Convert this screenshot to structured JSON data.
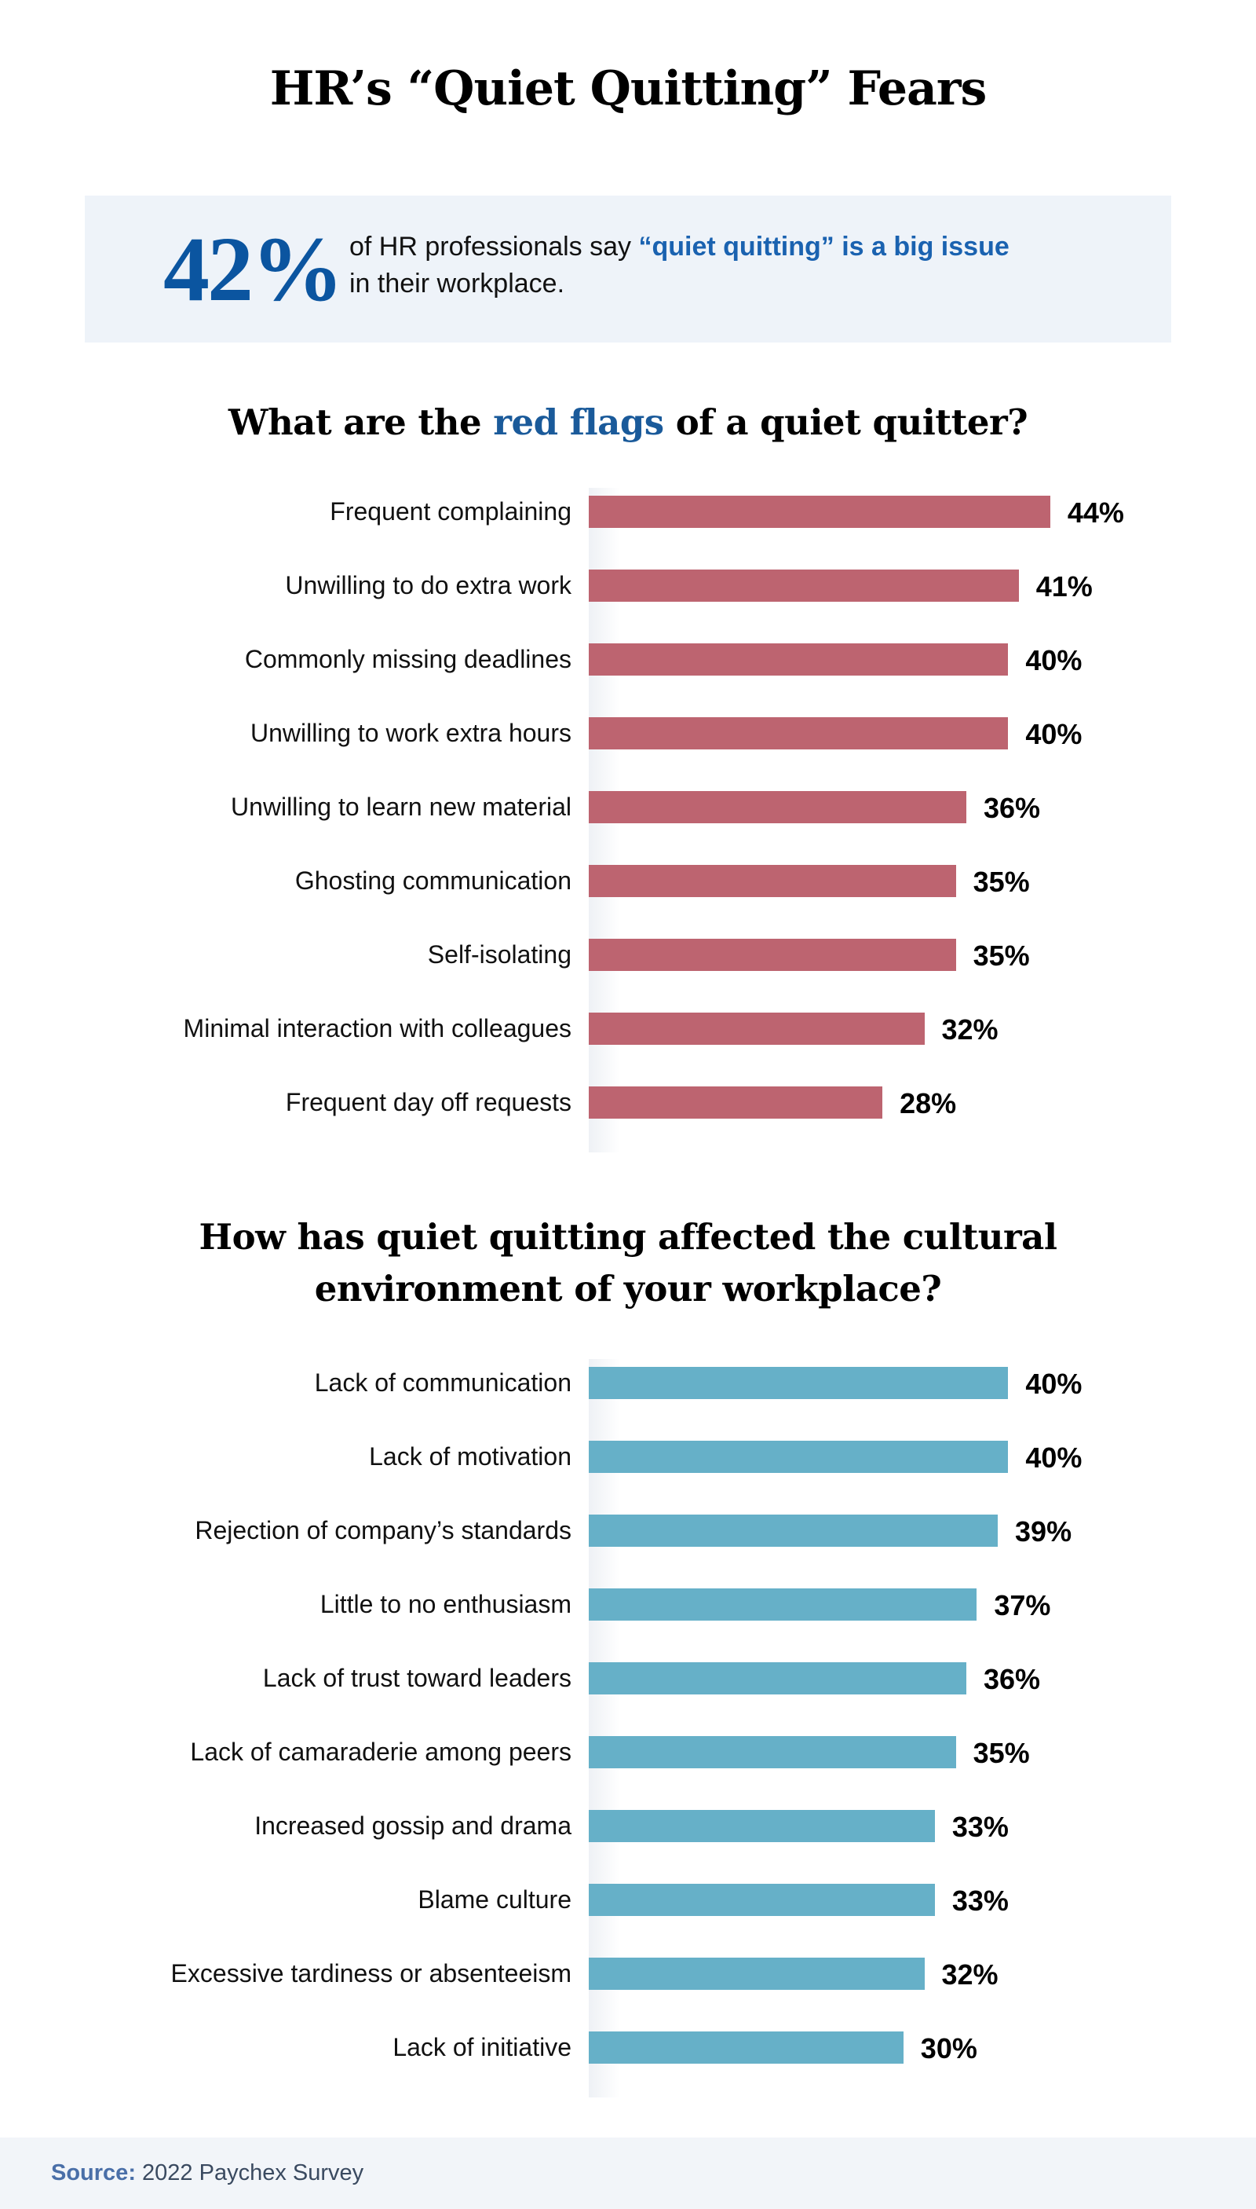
{
  "title": "HR’s “Quiet Quitting” Fears",
  "callout": {
    "value": "42%",
    "text_before": "of HR professionals say ",
    "highlight": "“quiet quitting” is a big issue",
    "text_after": "in their workplace."
  },
  "footer": {
    "source_label": "Source:",
    "source_text": "2022 Paychex Survey"
  },
  "chart_data": [
    {
      "type": "bar",
      "orientation": "horizontal",
      "title_parts": [
        "What are the ",
        "red flags",
        " of a quiet quitter?"
      ],
      "color": "#bd6470",
      "unit": "%",
      "categories": [
        "Frequent complaining",
        "Unwilling to do extra work",
        "Commonly missing deadlines",
        "Unwilling to work extra hours",
        "Unwilling to learn new material",
        "Ghosting communication",
        "Self-isolating",
        "Minimal interaction with colleagues",
        "Frequent day off requests"
      ],
      "values": [
        44,
        41,
        40,
        40,
        36,
        35,
        35,
        32,
        28
      ],
      "labels": [
        "44%",
        "41%",
        "40%",
        "40%",
        "36%",
        "35%",
        "35%",
        "32%",
        "28%"
      ]
    },
    {
      "type": "bar",
      "orientation": "horizontal",
      "title_lines": [
        "How has quiet quitting affected the cultural",
        "environment of your workplace?"
      ],
      "color": "#66b0c8",
      "unit": "%",
      "categories": [
        "Lack of communication",
        "Lack of motivation",
        "Rejection of company’s standards",
        "Little to no enthusiasm",
        "Lack of trust toward leaders",
        "Lack of camaraderie among peers",
        "Increased gossip and drama",
        "Blame culture",
        "Excessive tardiness or absenteeism",
        "Lack of initiative"
      ],
      "values": [
        40,
        40,
        39,
        37,
        36,
        35,
        33,
        33,
        32,
        30
      ],
      "labels": [
        "40%",
        "40%",
        "39%",
        "37%",
        "36%",
        "35%",
        "33%",
        "33%",
        "32%",
        "30%"
      ]
    }
  ]
}
